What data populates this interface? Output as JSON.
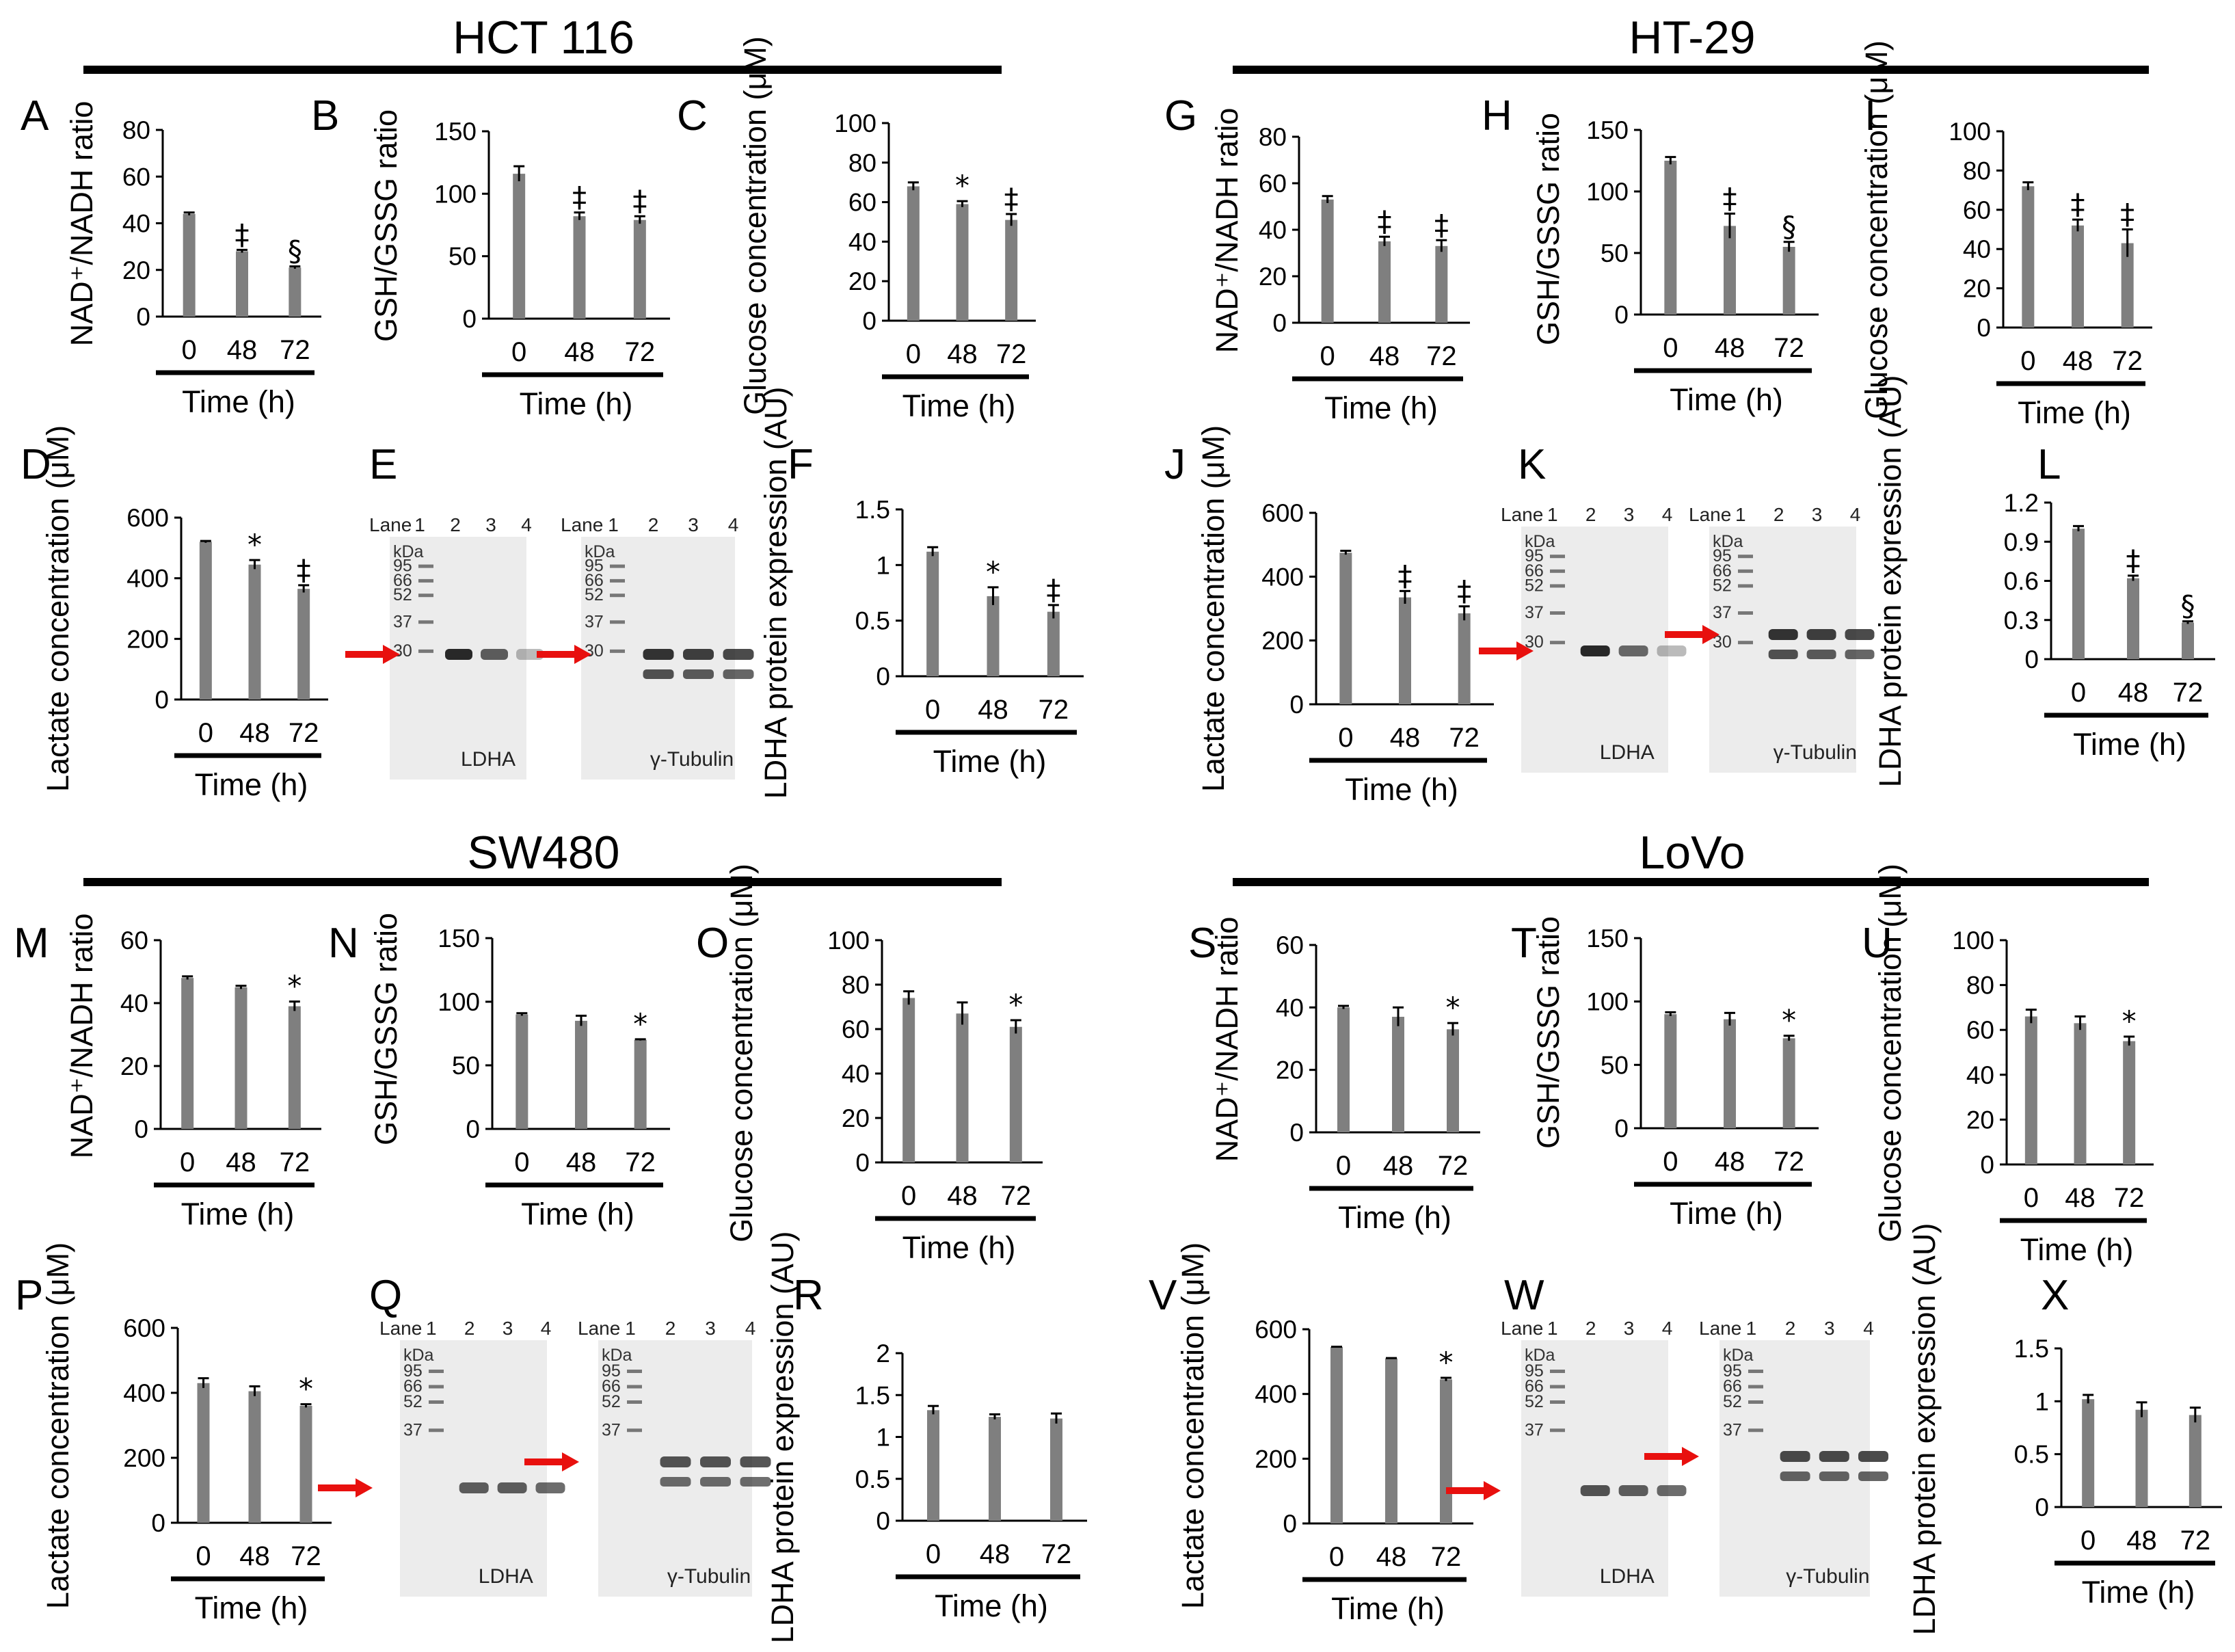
{
  "cell_lines": [
    {
      "id": "hct116",
      "title": "HCT 116"
    },
    {
      "id": "ht29",
      "title": "HT-29"
    },
    {
      "id": "sw480",
      "title": "SW480"
    },
    {
      "id": "lovo",
      "title": "LoVo"
    }
  ],
  "xlabel": "Time (h)",
  "x_categories": [
    "0",
    "48",
    "72"
  ],
  "chart_data": [
    {
      "panel": "A",
      "cell_line": "HCT 116",
      "type": "bar",
      "ylabel": "NAD⁺/NADH ratio",
      "ylim": [
        0,
        80
      ],
      "yticks": [
        "0",
        "20",
        "40",
        "60",
        "80"
      ],
      "categories": [
        "0",
        "48",
        "72"
      ],
      "values": [
        44,
        28,
        21
      ],
      "errors": [
        0.6,
        0.6,
        0.5
      ],
      "sig": [
        "",
        "‡",
        "§"
      ],
      "xlabel": "Time (h)"
    },
    {
      "panel": "B",
      "cell_line": "HCT 116",
      "type": "bar",
      "ylabel": "GSH/GSSG ratio",
      "ylim": [
        0,
        150
      ],
      "yticks": [
        "0",
        "50",
        "100",
        "150"
      ],
      "categories": [
        "0",
        "48",
        "72"
      ],
      "values": [
        116,
        82,
        79
      ],
      "errors": [
        6,
        3,
        3
      ],
      "sig": [
        "",
        "‡",
        "‡"
      ],
      "xlabel": "Time (h)"
    },
    {
      "panel": "C",
      "cell_line": "HCT 116",
      "type": "bar",
      "ylabel": "Glucose concentration (μM)",
      "ylim": [
        0,
        100
      ],
      "yticks": [
        "0",
        "20",
        "40",
        "60",
        "80",
        "100"
      ],
      "categories": [
        "0",
        "48",
        "72"
      ],
      "values": [
        68,
        59,
        51
      ],
      "errors": [
        2,
        1.5,
        3
      ],
      "sig": [
        "",
        "*",
        "‡"
      ],
      "xlabel": "Time (h)"
    },
    {
      "panel": "D",
      "cell_line": "HCT 116",
      "type": "bar",
      "ylabel": "Lactate concentration (μM)",
      "ylim": [
        0,
        600
      ],
      "yticks": [
        "0",
        "200",
        "400",
        "600"
      ],
      "categories": [
        "0",
        "48",
        "72"
      ],
      "values": [
        520,
        445,
        365
      ],
      "errors": [
        3,
        15,
        12
      ],
      "sig": [
        "",
        "*",
        "‡"
      ],
      "xlabel": "Time (h)"
    },
    {
      "panel": "E",
      "cell_line": "HCT 116",
      "type": "blot",
      "lane_label": "Lane",
      "lanes": [
        "1",
        "2",
        "3",
        "4"
      ],
      "kda_label": "kDa",
      "markers": [
        "95",
        "66",
        "52",
        "37",
        "30"
      ],
      "caption": "LDHA",
      "intensities": [
        0,
        0.95,
        0.7,
        0.3
      ]
    },
    {
      "panel": "E",
      "cell_line": "HCT 116",
      "type": "blot",
      "lane_label": "Lane",
      "lanes": [
        "1",
        "2",
        "3",
        "4"
      ],
      "kda_label": "kDa",
      "markers": [
        "95",
        "66",
        "52",
        "37",
        "30"
      ],
      "caption": "γ-Tubulin",
      "intensities": [
        0,
        0.9,
        0.85,
        0.8
      ]
    },
    {
      "panel": "F",
      "cell_line": "HCT 116",
      "type": "bar",
      "ylabel": "LDHA protein expression (AU)",
      "ylim": [
        0,
        1.5
      ],
      "yticks": [
        "0",
        "0.5",
        "1",
        "1.5"
      ],
      "categories": [
        "0",
        "48",
        "72"
      ],
      "values": [
        1.12,
        0.72,
        0.58
      ],
      "errors": [
        0.04,
        0.08,
        0.06
      ],
      "sig": [
        "",
        "*",
        "‡"
      ],
      "xlabel": "Time (h)"
    },
    {
      "panel": "G",
      "cell_line": "HT-29",
      "type": "bar",
      "ylabel": "NAD⁺/NADH ratio",
      "ylim": [
        0,
        80
      ],
      "yticks": [
        "0",
        "20",
        "40",
        "60",
        "80"
      ],
      "categories": [
        "0",
        "48",
        "72"
      ],
      "values": [
        53,
        35,
        33
      ],
      "errors": [
        1.5,
        2,
        2.5
      ],
      "sig": [
        "",
        "‡",
        "‡"
      ],
      "xlabel": "Time (h)"
    },
    {
      "panel": "H",
      "cell_line": "HT-29",
      "type": "bar",
      "ylabel": "GSH/GSSG ratio",
      "ylim": [
        0,
        150
      ],
      "yticks": [
        "0",
        "50",
        "100",
        "150"
      ],
      "categories": [
        "0",
        "48",
        "72"
      ],
      "values": [
        125,
        72,
        55
      ],
      "errors": [
        3,
        10,
        4
      ],
      "sig": [
        "",
        "‡",
        "§"
      ],
      "xlabel": "Time (h)"
    },
    {
      "panel": "I",
      "cell_line": "HT-29",
      "type": "bar",
      "ylabel": "Glucose concentration (μM)",
      "ylim": [
        0,
        100
      ],
      "yticks": [
        "0",
        "20",
        "40",
        "60",
        "80",
        "100"
      ],
      "categories": [
        "0",
        "48",
        "72"
      ],
      "values": [
        72,
        52,
        43
      ],
      "errors": [
        2,
        3,
        7
      ],
      "sig": [
        "",
        "‡",
        "‡"
      ],
      "xlabel": "Time (h)"
    },
    {
      "panel": "J",
      "cell_line": "HT-29",
      "type": "bar",
      "ylabel": "Lactate concentration (μM)",
      "ylim": [
        0,
        600
      ],
      "yticks": [
        "0",
        "200",
        "400",
        "600"
      ],
      "categories": [
        "0",
        "48",
        "72"
      ],
      "values": [
        475,
        335,
        285
      ],
      "errors": [
        6,
        20,
        22
      ],
      "sig": [
        "",
        "‡",
        "‡"
      ],
      "xlabel": "Time (h)"
    },
    {
      "panel": "K",
      "cell_line": "HT-29",
      "type": "blot",
      "lane_label": "Lane",
      "lanes": [
        "1",
        "2",
        "3",
        "4"
      ],
      "kda_label": "kDa",
      "markers": [
        "95",
        "66",
        "52",
        "37",
        "30"
      ],
      "caption": "LDHA",
      "intensities": [
        0,
        0.95,
        0.65,
        0.3
      ]
    },
    {
      "panel": "K",
      "cell_line": "HT-29",
      "type": "blot",
      "lane_label": "Lane",
      "lanes": [
        "1",
        "2",
        "3",
        "4"
      ],
      "kda_label": "kDa",
      "markers": [
        "95",
        "66",
        "52",
        "37",
        "30"
      ],
      "caption": "γ-Tubulin",
      "intensities": [
        0,
        0.9,
        0.85,
        0.8
      ]
    },
    {
      "panel": "L",
      "cell_line": "HT-29",
      "type": "bar",
      "ylabel": "LDHA protein expression (AU)",
      "ylim": [
        0,
        1.2
      ],
      "yticks": [
        "0",
        "0.3",
        "0.6",
        "0.9",
        "1.2"
      ],
      "categories": [
        "0",
        "48",
        "72"
      ],
      "values": [
        1.0,
        0.62,
        0.28
      ],
      "errors": [
        0.02,
        0.02,
        0.01
      ],
      "sig": [
        "",
        "‡",
        "§"
      ],
      "xlabel": "Time (h)"
    },
    {
      "panel": "M",
      "cell_line": "SW480",
      "type": "bar",
      "ylabel": "NAD⁺/NADH ratio",
      "ylim": [
        0,
        60
      ],
      "yticks": [
        "0",
        "20",
        "40",
        "60"
      ],
      "categories": [
        "0",
        "48",
        "72"
      ],
      "values": [
        48,
        45,
        39
      ],
      "errors": [
        0.5,
        0.5,
        1.5
      ],
      "sig": [
        "",
        "",
        "*"
      ],
      "xlabel": "Time (h)"
    },
    {
      "panel": "N",
      "cell_line": "SW480",
      "type": "bar",
      "ylabel": "GSH/GSSG ratio",
      "ylim": [
        0,
        150
      ],
      "yticks": [
        "0",
        "50",
        "100",
        "150"
      ],
      "categories": [
        "0",
        "48",
        "72"
      ],
      "values": [
        90,
        85,
        70
      ],
      "errors": [
        1,
        4,
        0.5
      ],
      "sig": [
        "",
        "",
        "*"
      ],
      "xlabel": "Time (h)"
    },
    {
      "panel": "O",
      "cell_line": "SW480",
      "type": "bar",
      "ylabel": "Glucose concentration (μM)",
      "ylim": [
        0,
        100
      ],
      "yticks": [
        "0",
        "20",
        "40",
        "60",
        "80",
        "100"
      ],
      "categories": [
        "0",
        "48",
        "72"
      ],
      "values": [
        74,
        67,
        61
      ],
      "errors": [
        3,
        5,
        3
      ],
      "sig": [
        "",
        "",
        "*"
      ],
      "xlabel": "Time (h)"
    },
    {
      "panel": "P",
      "cell_line": "SW480",
      "type": "bar",
      "ylabel": "Lactate concentration (μM)",
      "ylim": [
        0,
        600
      ],
      "yticks": [
        "0",
        "200",
        "400",
        "600"
      ],
      "categories": [
        "0",
        "48",
        "72"
      ],
      "values": [
        430,
        405,
        360
      ],
      "errors": [
        15,
        15,
        5
      ],
      "sig": [
        "",
        "",
        "*"
      ],
      "xlabel": "Time (h)"
    },
    {
      "panel": "Q",
      "cell_line": "SW480",
      "type": "blot",
      "lane_label": "Lane",
      "lanes": [
        "1",
        "2",
        "3",
        "4"
      ],
      "kda_label": "kDa",
      "markers": [
        "95",
        "66",
        "52",
        "37"
      ],
      "caption": "LDHA",
      "intensities": [
        0,
        0.7,
        0.7,
        0.65
      ]
    },
    {
      "panel": "Q",
      "cell_line": "SW480",
      "type": "blot",
      "lane_label": "Lane",
      "lanes": [
        "1",
        "2",
        "3",
        "4"
      ],
      "kda_label": "kDa",
      "markers": [
        "95",
        "66",
        "52",
        "37"
      ],
      "caption": "γ-Tubulin",
      "intensities": [
        0,
        0.75,
        0.75,
        0.75
      ]
    },
    {
      "panel": "R",
      "cell_line": "SW480",
      "type": "bar",
      "ylabel": "LDHA protein expression (AU)",
      "ylim": [
        0,
        2
      ],
      "yticks": [
        "0",
        "0.5",
        "1",
        "1.5",
        "2"
      ],
      "categories": [
        "0",
        "48",
        "72"
      ],
      "values": [
        1.32,
        1.24,
        1.22
      ],
      "errors": [
        0.05,
        0.03,
        0.06
      ],
      "sig": [
        "",
        "",
        ""
      ],
      "xlabel": "Time (h)"
    },
    {
      "panel": "S",
      "cell_line": "LoVo",
      "type": "bar",
      "ylabel": "NAD⁺/NADH ratio",
      "ylim": [
        0,
        60
      ],
      "yticks": [
        "0",
        "20",
        "40",
        "60"
      ],
      "categories": [
        "0",
        "48",
        "72"
      ],
      "values": [
        40,
        37,
        33
      ],
      "errors": [
        0.5,
        3,
        2
      ],
      "sig": [
        "",
        "",
        "*"
      ],
      "xlabel": "Time (h)"
    },
    {
      "panel": "T",
      "cell_line": "LoVo",
      "type": "bar",
      "ylabel": "GSH/GSSG ratio",
      "ylim": [
        0,
        150
      ],
      "yticks": [
        "0",
        "50",
        "100",
        "150"
      ],
      "categories": [
        "0",
        "48",
        "72"
      ],
      "values": [
        90,
        86,
        71
      ],
      "errors": [
        1.5,
        5,
        2
      ],
      "sig": [
        "",
        "",
        "*"
      ],
      "xlabel": "Time (h)"
    },
    {
      "panel": "U",
      "cell_line": "LoVo",
      "type": "bar",
      "ylabel": "Glucose concentration (μM)",
      "ylim": [
        0,
        100
      ],
      "yticks": [
        "0",
        "20",
        "40",
        "60",
        "80",
        "100"
      ],
      "categories": [
        "0",
        "48",
        "72"
      ],
      "values": [
        66,
        63,
        55
      ],
      "errors": [
        3,
        3,
        2
      ],
      "sig": [
        "",
        "",
        "*"
      ],
      "xlabel": "Time (h)"
    },
    {
      "panel": "V",
      "cell_line": "LoVo",
      "type": "bar",
      "ylabel": "Lactate concentration (μM)",
      "ylim": [
        0,
        600
      ],
      "yticks": [
        "0",
        "200",
        "400",
        "600"
      ],
      "categories": [
        "0",
        "48",
        "72"
      ],
      "values": [
        545,
        510,
        445
      ],
      "errors": [
        1,
        1,
        5
      ],
      "sig": [
        "",
        "",
        "*"
      ],
      "xlabel": "Time (h)"
    },
    {
      "panel": "W",
      "cell_line": "LoVo",
      "type": "blot",
      "lane_label": "Lane",
      "lanes": [
        "1",
        "2",
        "3",
        "4"
      ],
      "kda_label": "kDa",
      "markers": [
        "95",
        "66",
        "52",
        "37"
      ],
      "caption": "LDHA",
      "intensities": [
        0,
        0.75,
        0.7,
        0.65
      ]
    },
    {
      "panel": "W",
      "cell_line": "LoVo",
      "type": "blot",
      "lane_label": "Lane",
      "lanes": [
        "1",
        "2",
        "3",
        "4"
      ],
      "kda_label": "kDa",
      "markers": [
        "95",
        "66",
        "52",
        "37"
      ],
      "caption": "γ-Tubulin",
      "intensities": [
        0,
        0.8,
        0.8,
        0.8
      ]
    },
    {
      "panel": "X",
      "cell_line": "LoVo",
      "type": "bar",
      "ylabel": "LDHA protein expression (AU)",
      "ylim": [
        0,
        1.5
      ],
      "yticks": [
        "0",
        "0.5",
        "1",
        "1.5"
      ],
      "categories": [
        "0",
        "48",
        "72"
      ],
      "values": [
        1.02,
        0.92,
        0.87
      ],
      "errors": [
        0.04,
        0.07,
        0.07
      ],
      "sig": [
        "",
        "",
        ""
      ],
      "xlabel": "Time (h)"
    }
  ],
  "colors": {
    "bar": "#7f7f7f",
    "axis": "#000000",
    "arrow": "#e8100e",
    "blot_bg": "#ececec",
    "band": "#1e1e1e"
  }
}
